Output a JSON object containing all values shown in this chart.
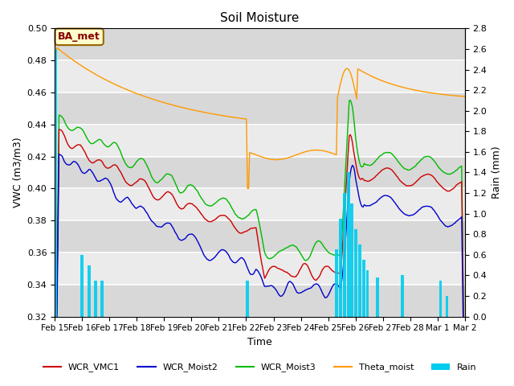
{
  "title": "Soil Moisture",
  "xlabel": "Time",
  "ylabel_left": "VWC (m3/m3)",
  "ylabel_right": "Rain (mm)",
  "ylim_left": [
    0.32,
    0.5
  ],
  "ylim_right": [
    0.0,
    2.8
  ],
  "yticks_left": [
    0.32,
    0.34,
    0.36,
    0.38,
    0.4,
    0.42,
    0.44,
    0.46,
    0.48,
    0.5
  ],
  "yticks_right": [
    0.0,
    0.2,
    0.4,
    0.6,
    0.8,
    1.0,
    1.2,
    1.4,
    1.6,
    1.8,
    2.0,
    2.2,
    2.4,
    2.6,
    2.8
  ],
  "xtick_labels": [
    "Feb 15",
    "Feb 16",
    "Feb 17",
    "Feb 18",
    "Feb 19",
    "Feb 20",
    "Feb 21",
    "Feb 22",
    "Feb 23",
    "Feb 24",
    "Feb 25",
    "Feb 26",
    "Feb 27",
    "Feb 28",
    "Mar 1",
    "Mar 2"
  ],
  "colors": {
    "WCR_VMC1": "#cc0000",
    "WCR_Moist2": "#0000cc",
    "WCR_Moist3": "#00bb00",
    "Theta_moist": "#ff9900",
    "Rain": "#00ccee",
    "background": "#ebebeb",
    "grid": "#ffffff",
    "band_light": "#e0e0e0",
    "label_box_bg": "#ffffcc",
    "label_box_edge": "#996600"
  },
  "label_text": "BA_met",
  "legend_entries": [
    "WCR_VMC1",
    "WCR_Moist2",
    "WCR_Moist3",
    "Theta_moist",
    "Rain"
  ]
}
